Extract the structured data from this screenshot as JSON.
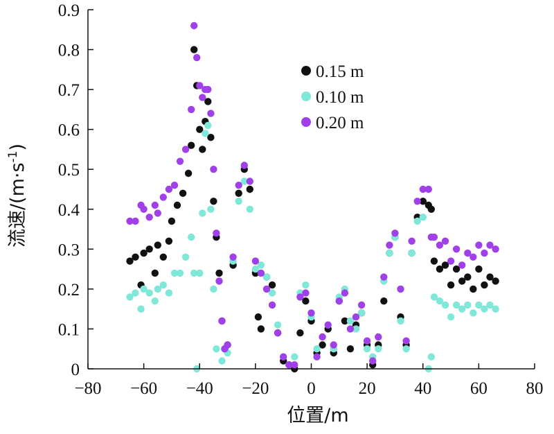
{
  "chart_data": {
    "type": "scatter",
    "xlabel": "位置/m",
    "ylabel_main": "流速/(m·s",
    "ylabel_sup": "-1",
    "ylabel_close": ")",
    "xlim": [
      -80,
      80
    ],
    "ylim": [
      0,
      0.9
    ],
    "xticks": [
      -80,
      -60,
      -40,
      -20,
      0,
      20,
      40,
      60,
      80
    ],
    "yticks": [
      0,
      0.1,
      0.2,
      0.3,
      0.4,
      0.5,
      0.6,
      0.7,
      0.8,
      0.9
    ],
    "xtick_labels": [
      "−80",
      "−60",
      "−40",
      "−20",
      "0",
      "20",
      "40",
      "60",
      "80"
    ],
    "ytick_labels": [
      "0",
      "0.1",
      "0.2",
      "0.3",
      "0.4",
      "0.5",
      "0.6",
      "0.7",
      "0.8",
      "0.9"
    ],
    "grid": false,
    "legend_position": "top-center",
    "series": [
      {
        "name": "0.15 m",
        "color": "#111111",
        "points": [
          [
            -65,
            0.27
          ],
          [
            -63,
            0.28
          ],
          [
            -61,
            0.21
          ],
          [
            -60,
            0.29
          ],
          [
            -58,
            0.3
          ],
          [
            -56,
            0.24
          ],
          [
            -55,
            0.31
          ],
          [
            -53,
            0.28
          ],
          [
            -51,
            0.32
          ],
          [
            -50,
            0.37
          ],
          [
            -48,
            0.41
          ],
          [
            -46,
            0.44
          ],
          [
            -44,
            0.49
          ],
          [
            -43,
            0.56
          ],
          [
            -42,
            0.8
          ],
          [
            -41,
            0.71
          ],
          [
            -40,
            0.6
          ],
          [
            -39,
            0.55
          ],
          [
            -38,
            0.62
          ],
          [
            -37,
            0.67
          ],
          [
            -36,
            0.58
          ],
          [
            -35,
            0.42
          ],
          [
            -34,
            0.33
          ],
          [
            -33,
            0.24
          ],
          [
            -32,
            0.12
          ],
          [
            -31,
            0.05
          ],
          [
            -30,
            0.06
          ],
          [
            -28,
            0.26
          ],
          [
            -26,
            0.44
          ],
          [
            -24,
            0.5
          ],
          [
            -22,
            0.45
          ],
          [
            -20,
            0.24
          ],
          [
            -19,
            0.13
          ],
          [
            -18,
            0.1
          ],
          [
            -16,
            0.23
          ],
          [
            -14,
            0.21
          ],
          [
            -12,
            0.09
          ],
          [
            -10,
            0.02
          ],
          [
            -8,
            0.01
          ],
          [
            -6,
            0.0
          ],
          [
            -4,
            0.09
          ],
          [
            -2,
            0.17
          ],
          [
            0,
            0.12
          ],
          [
            2,
            0.04
          ],
          [
            4,
            0.06
          ],
          [
            6,
            0.1
          ],
          [
            8,
            0.04
          ],
          [
            10,
            0.17
          ],
          [
            12,
            0.12
          ],
          [
            14,
            0.05
          ],
          [
            16,
            0.11
          ],
          [
            18,
            0.14
          ],
          [
            20,
            0.06
          ],
          [
            22,
            0.01
          ],
          [
            24,
            0.06
          ],
          [
            26,
            0.17
          ],
          [
            28,
            0.29
          ],
          [
            30,
            0.33
          ],
          [
            32,
            0.13
          ],
          [
            34,
            0.06
          ],
          [
            36,
            0.29
          ],
          [
            38,
            0.38
          ],
          [
            40,
            0.42
          ],
          [
            42,
            0.41
          ],
          [
            43,
            0.4
          ],
          [
            44,
            0.27
          ],
          [
            46,
            0.25
          ],
          [
            48,
            0.26
          ],
          [
            50,
            0.21
          ],
          [
            52,
            0.25
          ],
          [
            54,
            0.22
          ],
          [
            56,
            0.23
          ],
          [
            58,
            0.2
          ],
          [
            60,
            0.25
          ],
          [
            62,
            0.21
          ],
          [
            64,
            0.23
          ],
          [
            66,
            0.22
          ]
        ]
      },
      {
        "name": "0.10 m",
        "color": "#80e8d8",
        "points": [
          [
            -65,
            0.18
          ],
          [
            -63,
            0.19
          ],
          [
            -61,
            0.15
          ],
          [
            -60,
            0.2
          ],
          [
            -58,
            0.19
          ],
          [
            -56,
            0.17
          ],
          [
            -55,
            0.2
          ],
          [
            -53,
            0.21
          ],
          [
            -51,
            0.19
          ],
          [
            -49,
            0.24
          ],
          [
            -47,
            0.24
          ],
          [
            -45,
            0.28
          ],
          [
            -43,
            0.33
          ],
          [
            -42,
            0.24
          ],
          [
            -41,
            0.0
          ],
          [
            -40,
            0.24
          ],
          [
            -39,
            0.39
          ],
          [
            -38,
            0.59
          ],
          [
            -37,
            0.61
          ],
          [
            -36,
            0.4
          ],
          [
            -35,
            0.2
          ],
          [
            -34,
            0.05
          ],
          [
            -32,
            0.02
          ],
          [
            -30,
            0.04
          ],
          [
            -28,
            0.27
          ],
          [
            -26,
            0.42
          ],
          [
            -24,
            0.47
          ],
          [
            -22,
            0.4
          ],
          [
            -20,
            0.25
          ],
          [
            -18,
            0.26
          ],
          [
            -16,
            0.23
          ],
          [
            -14,
            0.19
          ],
          [
            -12,
            0.11
          ],
          [
            -10,
            0.03
          ],
          [
            -8,
            0.01
          ],
          [
            -6,
            0.03
          ],
          [
            -4,
            0.19
          ],
          [
            -2,
            0.21
          ],
          [
            0,
            0.13
          ],
          [
            2,
            0.05
          ],
          [
            4,
            0.08
          ],
          [
            6,
            0.11
          ],
          [
            8,
            0.05
          ],
          [
            10,
            0.18
          ],
          [
            12,
            0.2
          ],
          [
            14,
            0.12
          ],
          [
            16,
            0.1
          ],
          [
            18,
            0.14
          ],
          [
            20,
            0.05
          ],
          [
            22,
            0.03
          ],
          [
            24,
            0.05
          ],
          [
            26,
            0.22
          ],
          [
            28,
            0.29
          ],
          [
            30,
            0.33
          ],
          [
            32,
            0.12
          ],
          [
            34,
            0.05
          ],
          [
            36,
            0.29
          ],
          [
            38,
            0.37
          ],
          [
            40,
            0.38
          ],
          [
            42,
            0.0
          ],
          [
            43,
            0.03
          ],
          [
            44,
            0.18
          ],
          [
            46,
            0.17
          ],
          [
            48,
            0.16
          ],
          [
            50,
            0.13
          ],
          [
            52,
            0.16
          ],
          [
            54,
            0.15
          ],
          [
            56,
            0.16
          ],
          [
            58,
            0.14
          ],
          [
            60,
            0.16
          ],
          [
            62,
            0.15
          ],
          [
            64,
            0.16
          ],
          [
            66,
            0.15
          ]
        ]
      },
      {
        "name": "0.20 m",
        "color": "#a040e8",
        "points": [
          [
            -65,
            0.37
          ],
          [
            -63,
            0.37
          ],
          [
            -61,
            0.41
          ],
          [
            -60,
            0.4
          ],
          [
            -58,
            0.38
          ],
          [
            -56,
            0.41
          ],
          [
            -55,
            0.39
          ],
          [
            -53,
            0.43
          ],
          [
            -51,
            0.45
          ],
          [
            -49,
            0.46
          ],
          [
            -47,
            0.52
          ],
          [
            -45,
            0.55
          ],
          [
            -43,
            0.65
          ],
          [
            -42,
            0.86
          ],
          [
            -41,
            0.78
          ],
          [
            -40,
            0.71
          ],
          [
            -39,
            0.68
          ],
          [
            -38,
            0.7
          ],
          [
            -37,
            0.7
          ],
          [
            -36,
            0.64
          ],
          [
            -35,
            0.5
          ],
          [
            -34,
            0.34
          ],
          [
            -33,
            0.22
          ],
          [
            -32,
            0.12
          ],
          [
            -31,
            0.05
          ],
          [
            -30,
            0.06
          ],
          [
            -28,
            0.28
          ],
          [
            -26,
            0.46
          ],
          [
            -24,
            0.51
          ],
          [
            -22,
            0.47
          ],
          [
            -20,
            0.27
          ],
          [
            -18,
            0.24
          ],
          [
            -16,
            0.2
          ],
          [
            -14,
            0.16
          ],
          [
            -12,
            0.09
          ],
          [
            -10,
            0.03
          ],
          [
            -8,
            0.01
          ],
          [
            -6,
            0.01
          ],
          [
            -4,
            0.18
          ],
          [
            -2,
            0.19
          ],
          [
            0,
            0.14
          ],
          [
            2,
            0.03
          ],
          [
            4,
            0.08
          ],
          [
            6,
            0.11
          ],
          [
            8,
            0.06
          ],
          [
            10,
            0.17
          ],
          [
            12,
            0.19
          ],
          [
            14,
            0.1
          ],
          [
            16,
            0.13
          ],
          [
            18,
            0.16
          ],
          [
            20,
            0.07
          ],
          [
            22,
            0.02
          ],
          [
            24,
            0.08
          ],
          [
            26,
            0.23
          ],
          [
            28,
            0.31
          ],
          [
            30,
            0.34
          ],
          [
            32,
            0.2
          ],
          [
            34,
            0.07
          ],
          [
            36,
            0.32
          ],
          [
            38,
            0.42
          ],
          [
            40,
            0.45
          ],
          [
            42,
            0.45
          ],
          [
            43,
            0.33
          ],
          [
            44,
            0.33
          ],
          [
            46,
            0.31
          ],
          [
            48,
            0.32
          ],
          [
            50,
            0.27
          ],
          [
            52,
            0.3
          ],
          [
            54,
            0.26
          ],
          [
            56,
            0.29
          ],
          [
            58,
            0.28
          ],
          [
            60,
            0.31
          ],
          [
            62,
            0.29
          ],
          [
            64,
            0.31
          ],
          [
            66,
            0.3
          ]
        ]
      }
    ]
  }
}
